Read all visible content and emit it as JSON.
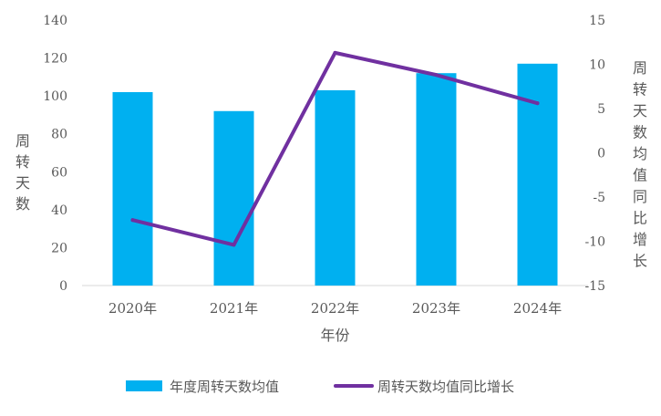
{
  "chart_data": {
    "type": "bar+line",
    "title": "",
    "categories": [
      "2020年",
      "2021年",
      "2022年",
      "2023年",
      "2024年"
    ],
    "xlabel": "年份",
    "ylabel_left": "周转天数",
    "ylabel_right": "周转天数均值同比增长",
    "left_axis": {
      "min": 0,
      "max": 140,
      "step": 20,
      "ticks": [
        "0",
        "20",
        "40",
        "60",
        "80",
        "100",
        "120",
        "140"
      ]
    },
    "right_axis": {
      "min": -15,
      "max": 15,
      "step": 5,
      "ticks": [
        "-15",
        "-10",
        "-5",
        "0",
        "5",
        "10",
        "15"
      ]
    },
    "series": [
      {
        "name": "年度周转天数均值",
        "type": "bar",
        "axis": "left",
        "color": "#00B0F0",
        "values": [
          102,
          92,
          103,
          112,
          117
        ]
      },
      {
        "name": "周转天数均值同比增长",
        "type": "line",
        "axis": "right",
        "color": "#7030A0",
        "values": [
          -7.6,
          -10.4,
          11.3,
          8.8,
          5.6
        ]
      }
    ],
    "legend_position": "bottom",
    "grid": false
  }
}
